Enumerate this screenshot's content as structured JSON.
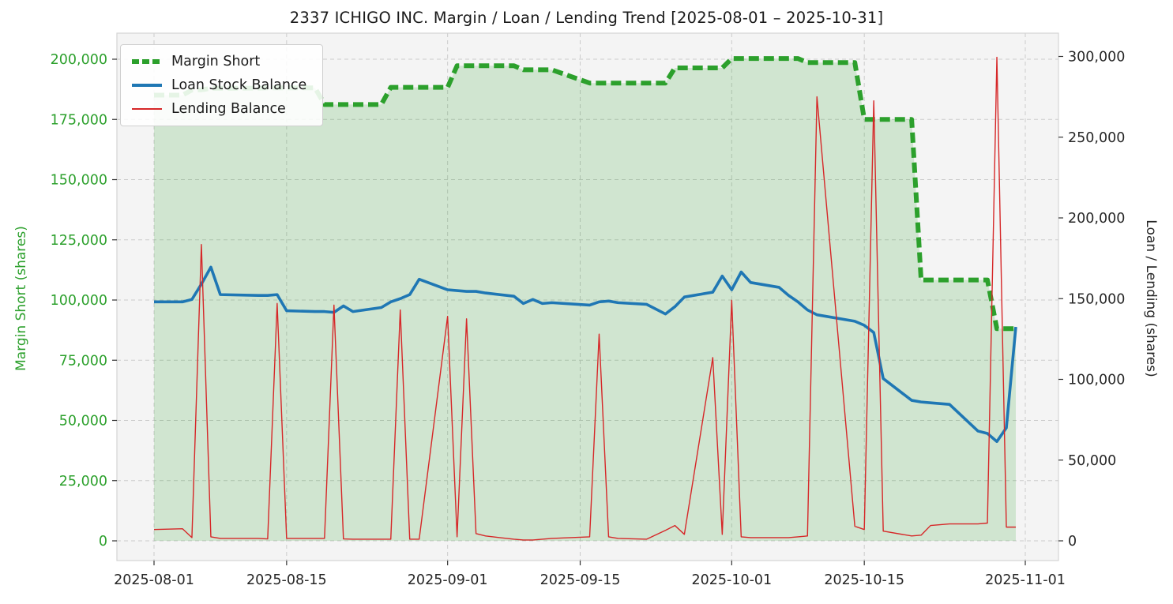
{
  "title": "2337 ICHIGO INC. Margin / Loan / Lending Trend [2025-08-01 – 2025-10-31]",
  "chart_data": {
    "type": "line",
    "title": "2337 ICHIGO INC. Margin / Loan / Lending Trend [2025-08-01 – 2025-10-31]",
    "plot_bg": "#f4f4f4",
    "grid": {
      "style": "dashed",
      "color": "#cbcbcb"
    },
    "x_range": {
      "start": "2025-08-01",
      "end": "2025-11-01"
    },
    "x_ticks": [
      "2025-08-01",
      "2025-08-15",
      "2025-09-01",
      "2025-09-15",
      "2025-10-01",
      "2025-10-15",
      "2025-11-01"
    ],
    "left_axis": {
      "label": "Margin Short (shares)",
      "min": 0,
      "max": 200000,
      "tick_step": 25000,
      "tick_labels": [
        "0",
        "25,000",
        "50,000",
        "75,000",
        "100,000",
        "125,000",
        "150,000",
        "175,000",
        "200,000"
      ],
      "color": "#2ca02c"
    },
    "right_axis": {
      "label": "Loan / Lending (shares)",
      "min": 0,
      "max": 300000,
      "tick_step": 50000,
      "tick_labels": [
        "0",
        "50,000",
        "100,000",
        "150,000",
        "200,000",
        "250,000",
        "300,000"
      ],
      "color": "#262626"
    },
    "x": [
      "2025-08-01",
      "2025-08-04",
      "2025-08-05",
      "2025-08-06",
      "2025-08-07",
      "2025-08-08",
      "2025-08-12",
      "2025-08-13",
      "2025-08-14",
      "2025-08-15",
      "2025-08-18",
      "2025-08-19",
      "2025-08-20",
      "2025-08-21",
      "2025-08-22",
      "2025-08-25",
      "2025-08-26",
      "2025-08-27",
      "2025-08-28",
      "2025-08-29",
      "2025-09-01",
      "2025-09-02",
      "2025-09-03",
      "2025-09-04",
      "2025-09-05",
      "2025-09-08",
      "2025-09-09",
      "2025-09-10",
      "2025-09-11",
      "2025-09-12",
      "2025-09-16",
      "2025-09-17",
      "2025-09-18",
      "2025-09-19",
      "2025-09-22",
      "2025-09-24",
      "2025-09-25",
      "2025-09-26",
      "2025-09-29",
      "2025-09-30",
      "2025-10-01",
      "2025-10-02",
      "2025-10-03",
      "2025-10-06",
      "2025-10-07",
      "2025-10-08",
      "2025-10-09",
      "2025-10-10",
      "2025-10-14",
      "2025-10-15",
      "2025-10-16",
      "2025-10-17",
      "2025-10-20",
      "2025-10-21",
      "2025-10-22",
      "2025-10-23",
      "2025-10-24",
      "2025-10-27",
      "2025-10-28",
      "2025-10-29",
      "2025-10-30",
      "2025-10-31"
    ],
    "series": [
      {
        "name": "Margin Short",
        "axis": "left",
        "color": "#2ca02c",
        "line_width": 6,
        "dash": "13 6",
        "fill": "rgba(44,160,44,0.18)",
        "values": [
          185100,
          185100,
          187200,
          187300,
          187900,
          187900,
          188000,
          188100,
          188100,
          188100,
          188100,
          181200,
          181200,
          181200,
          181200,
          181200,
          188300,
          188300,
          188300,
          188300,
          188300,
          197300,
          197300,
          197300,
          197300,
          197300,
          195600,
          195600,
          195600,
          195600,
          190100,
          190100,
          190100,
          190100,
          190100,
          190100,
          196400,
          196400,
          196400,
          196400,
          200300,
          200300,
          200300,
          200300,
          200300,
          200300,
          198600,
          198600,
          198600,
          175000,
          175000,
          175000,
          175000,
          108300,
          108300,
          108300,
          108300,
          108300,
          108300,
          88100,
          88100,
          88100
        ]
      },
      {
        "name": "Loan Stock Balance",
        "axis": "right",
        "color": "#1f77b4",
        "line_width": 3.6,
        "dash": null,
        "fill": null,
        "values": [
          148000,
          148000,
          149500,
          159000,
          169500,
          152500,
          152000,
          152000,
          152500,
          142500,
          142000,
          142000,
          141500,
          145500,
          142000,
          144500,
          148000,
          150000,
          152500,
          162000,
          155500,
          155000,
          154500,
          154500,
          153500,
          151500,
          147000,
          149500,
          147000,
          147500,
          146000,
          148000,
          148500,
          147500,
          146500,
          140500,
          145000,
          151000,
          154000,
          164000,
          155500,
          166500,
          160000,
          157000,
          152000,
          148000,
          143000,
          140000,
          136000,
          133500,
          129000,
          100500,
          87000,
          86000,
          85500,
          85000,
          84500,
          68000,
          66500,
          61500,
          70000,
          132500
        ]
      },
      {
        "name": "Lending Balance",
        "axis": "right",
        "color": "#d62728",
        "line_width": 1.4,
        "dash": null,
        "fill": null,
        "values": [
          7000,
          7500,
          2000,
          183500,
          2500,
          1500,
          1500,
          1200,
          147000,
          1500,
          1500,
          1500,
          146000,
          1200,
          1000,
          1000,
          1000,
          143000,
          1000,
          1000,
          139000,
          2500,
          137500,
          4500,
          3000,
          1000,
          500,
          500,
          1000,
          1500,
          2500,
          128000,
          2500,
          1500,
          1000,
          6500,
          9500,
          4000,
          113500,
          4000,
          149000,
          2500,
          2000,
          2000,
          2000,
          2500,
          3000,
          275000,
          9000,
          7000,
          272500,
          6000,
          3000,
          3500,
          9500,
          10000,
          10500,
          10500,
          11000,
          299500,
          8500,
          8500
        ]
      }
    ],
    "legend": {
      "position": "upper-left",
      "items": [
        "Margin Short",
        "Loan Stock Balance",
        "Lending Balance"
      ]
    }
  }
}
